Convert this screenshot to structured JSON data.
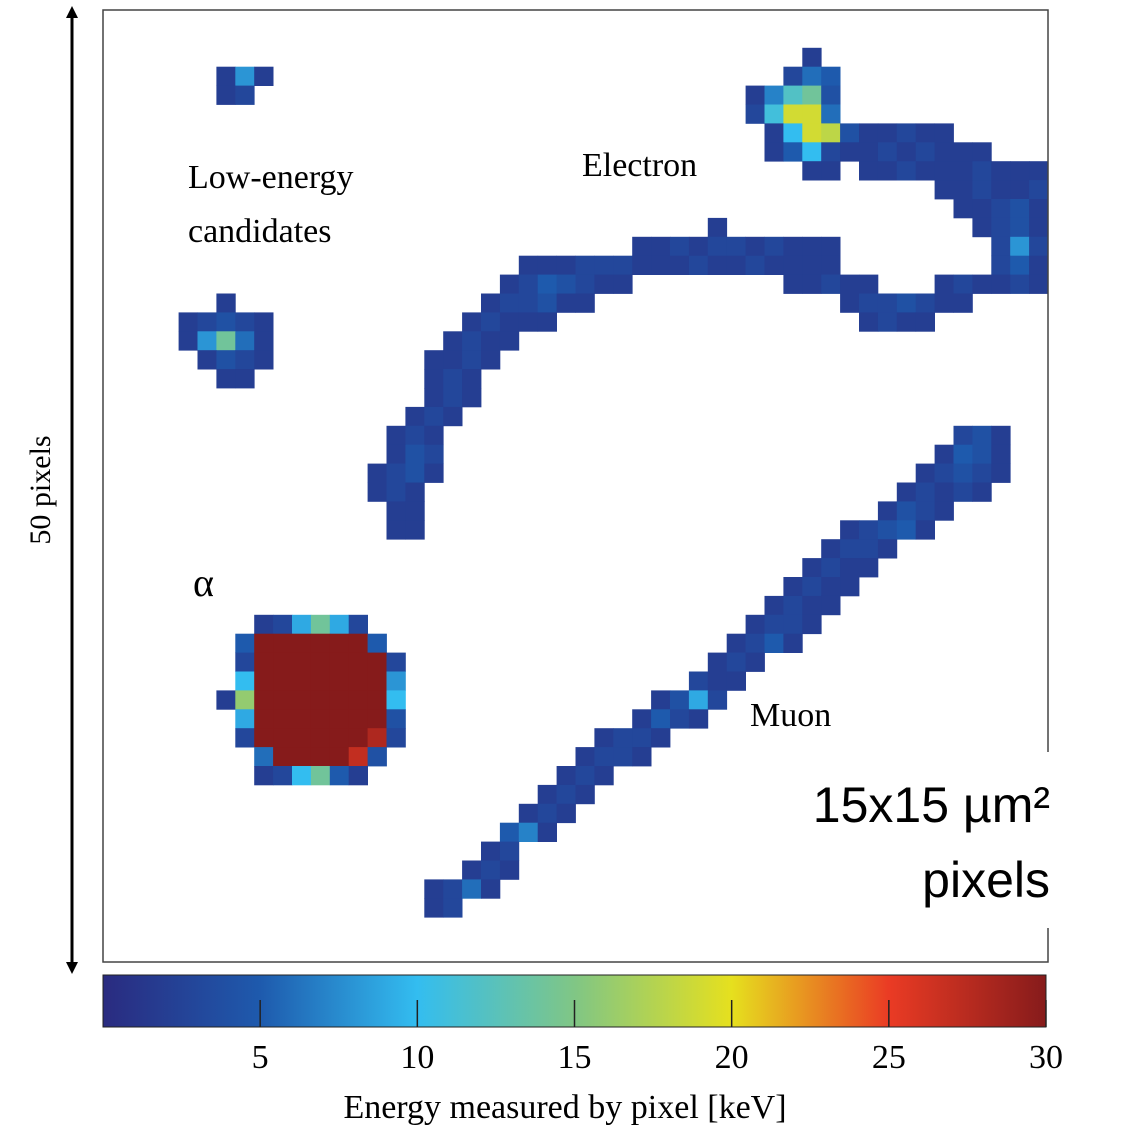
{
  "chart_data": {
    "type": "heatmap",
    "ylabel": "50 pixels",
    "annotations": [
      {
        "lines": [
          "Low-energy",
          "candidates"
        ]
      },
      {
        "lines": [
          "Electron"
        ]
      },
      {
        "lines": [
          "Muon"
        ]
      },
      {
        "lines": [
          "α"
        ]
      },
      {
        "lines": [
          "15x15 µm²",
          "pixels"
        ]
      }
    ],
    "colormap": [
      "#2a2b80",
      "#1e5aad",
      "#33bdf0",
      "#80c685",
      "#e6e01e",
      "#ea3b24",
      "#861b1b"
    ],
    "colorbar": {
      "label": "Energy measured by pixel [keV]",
      "xlim": [
        0,
        30
      ],
      "xticks": [
        5,
        10,
        15,
        20,
        25,
        30
      ]
    },
    "runs": [
      {
        "row": 3,
        "col": 6,
        "values": [
          2,
          8,
          2
        ]
      },
      {
        "row": 4,
        "col": 6,
        "values": [
          2,
          3
        ]
      },
      {
        "row": 15,
        "col": 6,
        "values": [
          2
        ]
      },
      {
        "row": 16,
        "col": 4,
        "values": [
          2,
          3,
          4,
          3,
          2
        ]
      },
      {
        "row": 17,
        "col": 4,
        "values": [
          2,
          8,
          14,
          6,
          2
        ]
      },
      {
        "row": 18,
        "col": 5,
        "values": [
          2,
          4,
          3,
          2
        ]
      },
      {
        "row": 19,
        "col": 6,
        "values": [
          2,
          2
        ]
      },
      {
        "row": 32,
        "col": 8,
        "values": [
          2,
          3,
          9,
          14,
          9,
          3
        ]
      },
      {
        "row": 33,
        "col": 7,
        "values": [
          5,
          30,
          30,
          30,
          30,
          30,
          30,
          5
        ]
      },
      {
        "row": 34,
        "col": 7,
        "values": [
          3,
          30,
          30,
          30,
          30,
          30,
          30,
          30,
          3
        ]
      },
      {
        "row": 35,
        "col": 7,
        "values": [
          10,
          30,
          30,
          30,
          30,
          30,
          30,
          30,
          8
        ]
      },
      {
        "row": 36,
        "col": 6,
        "values": [
          2,
          16,
          30,
          30,
          30,
          30,
          30,
          30,
          30,
          10
        ]
      },
      {
        "row": 37,
        "col": 7,
        "values": [
          9,
          30,
          30,
          30,
          30,
          30,
          30,
          30,
          4
        ]
      },
      {
        "row": 38,
        "col": 7,
        "values": [
          3,
          30,
          30,
          30,
          30,
          30,
          30,
          28,
          3
        ]
      },
      {
        "row": 39,
        "col": 8,
        "values": [
          6,
          30,
          30,
          30,
          30,
          27,
          4
        ]
      },
      {
        "row": 40,
        "col": 8,
        "values": [
          2,
          3,
          10,
          14,
          5,
          2
        ]
      },
      {
        "row": 22,
        "col": 45,
        "values": [
          3,
          4,
          2
        ]
      },
      {
        "row": 23,
        "col": 44,
        "values": [
          2,
          5,
          4,
          2
        ]
      },
      {
        "row": 24,
        "col": 43,
        "values": [
          2,
          3,
          4,
          3,
          2
        ]
      },
      {
        "row": 25,
        "col": 42,
        "values": [
          2,
          3,
          2,
          3,
          2
        ]
      },
      {
        "row": 26,
        "col": 41,
        "values": [
          2,
          4,
          3,
          2
        ]
      },
      {
        "row": 27,
        "col": 39,
        "values": [
          2,
          3,
          4,
          5,
          2
        ]
      },
      {
        "row": 28,
        "col": 38,
        "values": [
          2,
          3,
          3,
          2
        ]
      },
      {
        "row": 29,
        "col": 37,
        "values": [
          2,
          3,
          2,
          2
        ]
      },
      {
        "row": 30,
        "col": 36,
        "values": [
          2,
          3,
          2,
          2
        ]
      },
      {
        "row": 31,
        "col": 35,
        "values": [
          2,
          3,
          2,
          2
        ]
      },
      {
        "row": 32,
        "col": 34,
        "values": [
          2,
          3,
          3,
          2
        ]
      },
      {
        "row": 33,
        "col": 33,
        "values": [
          2,
          3,
          5,
          2
        ]
      },
      {
        "row": 34,
        "col": 32,
        "values": [
          2,
          3,
          2
        ]
      },
      {
        "row": 35,
        "col": 31,
        "values": [
          3,
          2,
          2
        ]
      },
      {
        "row": 36,
        "col": 29,
        "values": [
          2,
          4,
          9,
          3
        ]
      },
      {
        "row": 37,
        "col": 28,
        "values": [
          2,
          5,
          3,
          2
        ]
      },
      {
        "row": 38,
        "col": 26,
        "values": [
          2,
          3,
          3,
          2
        ]
      },
      {
        "row": 39,
        "col": 25,
        "values": [
          2,
          3,
          3,
          2
        ]
      },
      {
        "row": 40,
        "col": 24,
        "values": [
          2,
          3,
          2
        ]
      },
      {
        "row": 41,
        "col": 23,
        "values": [
          2,
          3,
          2
        ]
      },
      {
        "row": 42,
        "col": 22,
        "values": [
          2,
          3,
          2
        ]
      },
      {
        "row": 43,
        "col": 21,
        "values": [
          5,
          7,
          2
        ]
      },
      {
        "row": 44,
        "col": 20,
        "values": [
          2,
          3
        ]
      },
      {
        "row": 45,
        "col": 19,
        "values": [
          2,
          3,
          2
        ]
      },
      {
        "row": 46,
        "col": 17,
        "values": [
          2,
          3,
          6,
          2
        ]
      },
      {
        "row": 47,
        "col": 17,
        "values": [
          2,
          3
        ]
      },
      {
        "row": 2,
        "col": 37,
        "values": [
          2
        ]
      },
      {
        "row": 3,
        "col": 36,
        "values": [
          3,
          6,
          5
        ]
      },
      {
        "row": 4,
        "col": 34,
        "values": [
          2,
          7,
          12,
          14,
          4
        ]
      },
      {
        "row": 5,
        "col": 34,
        "values": [
          3,
          11,
          19,
          19,
          6
        ]
      },
      {
        "row": 6,
        "col": 35,
        "values": [
          2,
          10,
          19,
          18,
          4,
          2,
          2,
          3,
          2,
          2
        ]
      },
      {
        "row": 7,
        "col": 35,
        "values": [
          2,
          5,
          10,
          3,
          2,
          2,
          3,
          2,
          3,
          2,
          2,
          2
        ]
      },
      {
        "row": 8,
        "col": 37,
        "values": [
          2,
          2
        ]
      },
      {
        "row": 8,
        "col": 40,
        "values": [
          2,
          2,
          3,
          2,
          2,
          2,
          3,
          2,
          2,
          2
        ]
      },
      {
        "row": 9,
        "col": 44,
        "values": [
          2,
          2,
          3,
          2,
          2,
          3
        ]
      },
      {
        "row": 10,
        "col": 45,
        "values": [
          2,
          2,
          3,
          4,
          2
        ]
      },
      {
        "row": 11,
        "col": 32,
        "values": [
          2
        ]
      },
      {
        "row": 11,
        "col": 46,
        "values": [
          2,
          3,
          4,
          2
        ]
      },
      {
        "row": 12,
        "col": 28,
        "values": [
          2,
          2,
          3,
          2,
          3,
          3,
          2,
          3,
          2,
          2,
          2
        ]
      },
      {
        "row": 12,
        "col": 47,
        "values": [
          3,
          8,
          3
        ]
      },
      {
        "row": 13,
        "col": 22,
        "values": [
          2,
          2,
          2,
          3,
          3,
          3,
          2,
          2,
          2,
          3,
          2,
          2,
          3,
          2,
          2,
          2,
          2
        ]
      },
      {
        "row": 13,
        "col": 47,
        "values": [
          3,
          5,
          2
        ]
      },
      {
        "row": 14,
        "col": 21,
        "values": [
          2,
          3,
          5,
          4,
          3,
          2,
          2
        ]
      },
      {
        "row": 14,
        "col": 36,
        "values": [
          2,
          2,
          3,
          2,
          2
        ]
      },
      {
        "row": 14,
        "col": 44,
        "values": [
          2,
          3,
          2,
          2,
          3,
          2
        ]
      },
      {
        "row": 15,
        "col": 20,
        "values": [
          2,
          3,
          3,
          4,
          2,
          2
        ]
      },
      {
        "row": 15,
        "col": 39,
        "values": [
          2,
          3,
          3,
          4,
          3,
          2,
          2
        ]
      },
      {
        "row": 16,
        "col": 19,
        "values": [
          2,
          3,
          2,
          2,
          2
        ]
      },
      {
        "row": 16,
        "col": 40,
        "values": [
          2,
          3,
          2,
          2
        ]
      },
      {
        "row": 17,
        "col": 18,
        "values": [
          2,
          3,
          2,
          2
        ]
      },
      {
        "row": 18,
        "col": 17,
        "values": [
          2,
          2,
          3,
          2
        ]
      },
      {
        "row": 19,
        "col": 17,
        "values": [
          2,
          3,
          2
        ]
      },
      {
        "row": 20,
        "col": 17,
        "values": [
          2,
          3,
          2
        ]
      },
      {
        "row": 21,
        "col": 16,
        "values": [
          2,
          3,
          2
        ]
      },
      {
        "row": 22,
        "col": 15,
        "values": [
          2,
          3,
          2
        ]
      },
      {
        "row": 23,
        "col": 15,
        "values": [
          2,
          4,
          3
        ]
      },
      {
        "row": 24,
        "col": 14,
        "values": [
          2,
          3,
          4,
          2
        ]
      },
      {
        "row": 25,
        "col": 14,
        "values": [
          2,
          3,
          2
        ]
      },
      {
        "row": 26,
        "col": 15,
        "values": [
          2,
          2
        ]
      },
      {
        "row": 27,
        "col": 15,
        "values": [
          2,
          2
        ]
      }
    ]
  }
}
